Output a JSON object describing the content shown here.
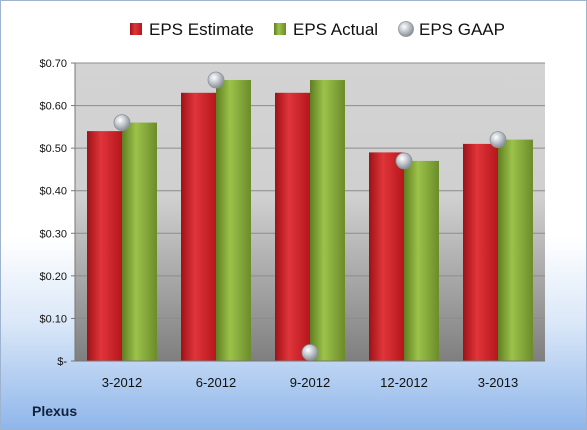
{
  "company": "Plexus",
  "chart_data": {
    "type": "bar",
    "title": "",
    "xlabel": "",
    "ylabel": "",
    "categories": [
      "3-2012",
      "6-2012",
      "9-2012",
      "12-2012",
      "3-2013"
    ],
    "series": [
      {
        "name": "EPS Estimate",
        "kind": "bar",
        "color": "#d42a2f",
        "values": [
          0.54,
          0.63,
          0.63,
          0.49,
          0.51
        ]
      },
      {
        "name": "EPS Actual",
        "kind": "bar",
        "color": "#8aae3c",
        "values": [
          0.56,
          0.66,
          0.66,
          0.47,
          0.52
        ]
      },
      {
        "name": "EPS GAAP",
        "kind": "scatter",
        "color": "#b8bec6",
        "values": [
          0.56,
          0.66,
          0.02,
          0.47,
          0.52
        ]
      }
    ],
    "ylim": [
      0,
      0.7
    ],
    "yticks": [
      0,
      0.1,
      0.2,
      0.3,
      0.4,
      0.5,
      0.6,
      0.7
    ],
    "ytick_labels": [
      "$-",
      "$0.10",
      "$0.20",
      "$0.30",
      "$0.40",
      "$0.50",
      "$0.60",
      "$0.70"
    ],
    "grid": true,
    "legend_position": "top"
  }
}
